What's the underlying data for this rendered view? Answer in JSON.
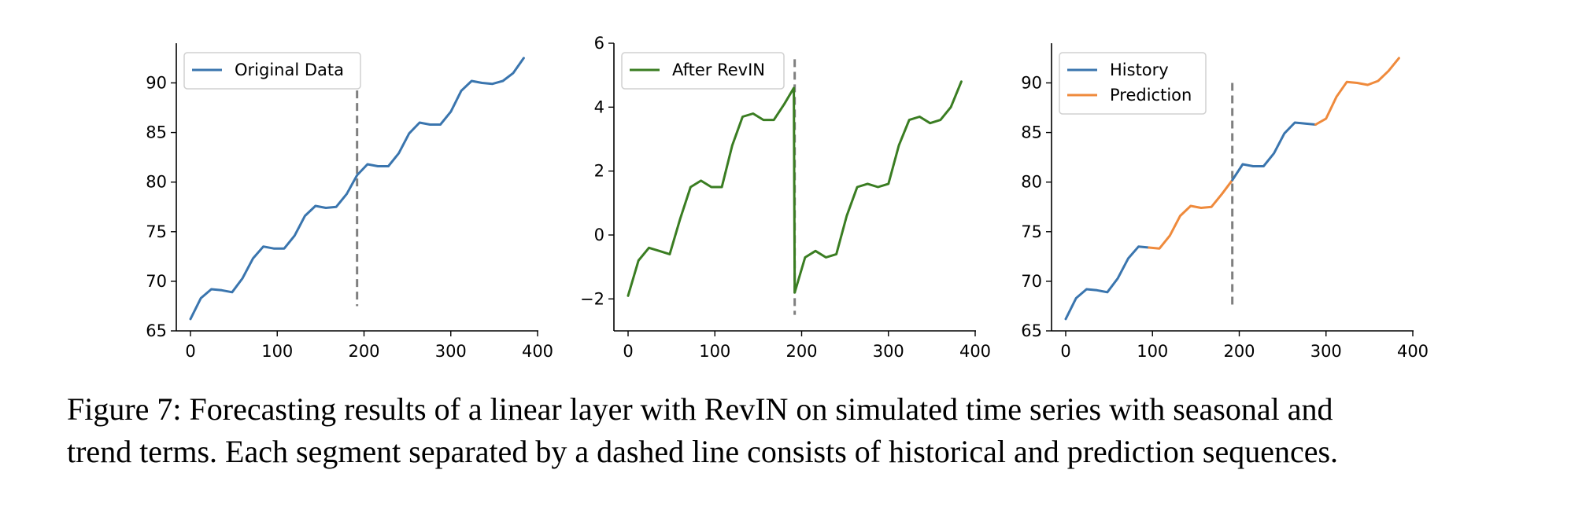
{
  "figure": {
    "caption_line1": "Figure 7: Forecasting results of a linear layer with RevIN on simulated time series with seasonal and",
    "caption_line2": "trend terms. Each segment separated by a dashed line consists of historical and prediction sequences."
  },
  "colors": {
    "blue": "#3a75ae",
    "green": "#3a7d22",
    "orange": "#ef8a3c",
    "divider": "#7f7f7f"
  },
  "chart_data": [
    {
      "type": "line",
      "xlim": [
        0,
        400
      ],
      "ylim": [
        65,
        94
      ],
      "xticks": [
        0,
        100,
        200,
        300,
        400
      ],
      "yticks": [
        65,
        70,
        75,
        80,
        85,
        90
      ],
      "legend_position": "top-left",
      "divider_x": 192,
      "divider_range": [
        67.5,
        90.5
      ],
      "series": [
        {
          "name": "Original Data",
          "color": "#3a75ae",
          "x": [
            0,
            12,
            24,
            36,
            48,
            60,
            72,
            84,
            96,
            108,
            120,
            132,
            144,
            156,
            168,
            180,
            192,
            204,
            216,
            228,
            240,
            252,
            264,
            276,
            288,
            300,
            312,
            324,
            336,
            348,
            360,
            372,
            384
          ],
          "y": [
            66.2,
            68.3,
            69.2,
            69.1,
            68.9,
            70.3,
            72.3,
            73.5,
            73.3,
            73.3,
            74.6,
            76.6,
            77.6,
            77.4,
            77.5,
            78.8,
            80.7,
            81.8,
            81.6,
            81.6,
            82.9,
            84.9,
            86.0,
            85.8,
            85.8,
            87.1,
            89.2,
            90.2,
            90.0,
            89.9,
            90.2,
            91.0,
            92.5
          ]
        }
      ]
    },
    {
      "type": "line",
      "xlim": [
        0,
        400
      ],
      "ylim": [
        -3,
        6
      ],
      "xticks": [
        0,
        100,
        200,
        300,
        400
      ],
      "yticks": [
        -2,
        0,
        2,
        4,
        6
      ],
      "legend_position": "top-left",
      "divider_x": 192,
      "divider_range": [
        -2.5,
        5.5
      ],
      "series": [
        {
          "name": "After RevIN",
          "color": "#3a7d22",
          "x": [
            0,
            12,
            24,
            36,
            48,
            60,
            72,
            84,
            96,
            108,
            120,
            132,
            144,
            156,
            168,
            180,
            191,
            192,
            204,
            216,
            228,
            240,
            252,
            264,
            276,
            288,
            300,
            312,
            324,
            336,
            348,
            360,
            372,
            384
          ],
          "y": [
            -1.9,
            -0.8,
            -0.4,
            -0.5,
            -0.6,
            0.5,
            1.5,
            1.7,
            1.5,
            1.5,
            2.8,
            3.7,
            3.8,
            3.6,
            3.6,
            4.1,
            4.6,
            -1.8,
            -0.7,
            -0.5,
            -0.7,
            -0.6,
            0.6,
            1.5,
            1.6,
            1.5,
            1.6,
            2.8,
            3.6,
            3.7,
            3.5,
            3.6,
            4.0,
            4.8
          ]
        }
      ]
    },
    {
      "type": "line",
      "xlim": [
        0,
        400
      ],
      "ylim": [
        65,
        94
      ],
      "xticks": [
        0,
        100,
        200,
        300,
        400
      ],
      "yticks": [
        65,
        70,
        75,
        80,
        85,
        90
      ],
      "legend_position": "top-left",
      "divider_x": 192,
      "divider_range": [
        67.5,
        90.0
      ],
      "series": [
        {
          "name": "History",
          "color": "#3a75ae",
          "x": [
            0,
            12,
            24,
            36,
            48,
            60,
            72,
            84,
            96
          ],
          "y": [
            66.2,
            68.3,
            69.2,
            69.1,
            68.9,
            70.3,
            72.3,
            73.5,
            73.4
          ]
        },
        {
          "name": "Prediction",
          "color": "#ef8a3c",
          "x": [
            96,
            108,
            120,
            132,
            144,
            156,
            168,
            180,
            192
          ],
          "y": [
            73.4,
            73.3,
            74.6,
            76.6,
            77.6,
            77.4,
            77.5,
            78.8,
            80.2
          ]
        },
        {
          "name": "",
          "color": "#3a75ae",
          "x": [
            192,
            204,
            216,
            228,
            240,
            252,
            264,
            276,
            288
          ],
          "y": [
            80.2,
            81.8,
            81.6,
            81.6,
            82.9,
            84.9,
            86.0,
            85.9,
            85.8
          ]
        },
        {
          "name": "",
          "color": "#ef8a3c",
          "x": [
            288,
            300,
            312,
            324,
            336,
            348,
            360,
            372,
            384
          ],
          "y": [
            85.8,
            86.4,
            88.6,
            90.1,
            90.0,
            89.8,
            90.2,
            91.2,
            92.5
          ]
        }
      ]
    }
  ]
}
